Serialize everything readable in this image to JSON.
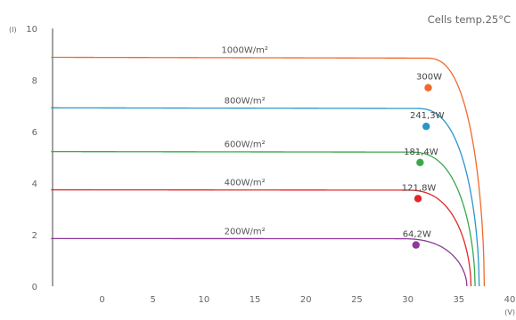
{
  "chart_data": {
    "type": "line",
    "title": "Cells temp.25°C",
    "xlabel": "(V)",
    "ylabel": "(I)",
    "xlim": [
      -5,
      40
    ],
    "ylim": [
      0,
      10
    ],
    "x_ticks": [
      "0",
      "5",
      "10",
      "15",
      "20",
      "25",
      "30",
      "35",
      "40"
    ],
    "y_ticks": [
      "0",
      "2",
      "4",
      "6",
      "8",
      "10"
    ],
    "grid": false,
    "series": [
      {
        "name": "1000W/m²",
        "color": "#f06a2e",
        "isc": 8.88,
        "voc": 37.5,
        "knee": 31.8,
        "mpp": {
          "v": 32.0,
          "i": 7.7,
          "label": "300W"
        }
      },
      {
        "name": "800W/m²",
        "color": "#2a96c8",
        "isc": 6.92,
        "voc": 37.0,
        "knee": 30.8,
        "mpp": {
          "v": 31.8,
          "i": 6.2,
          "label": "241,3W"
        }
      },
      {
        "name": "600W/m²",
        "color": "#3aa84a",
        "isc": 5.22,
        "voc": 36.6,
        "knee": 30.2,
        "mpp": {
          "v": 31.2,
          "i": 4.8,
          "label": "181,4W"
        }
      },
      {
        "name": "400W/m²",
        "color": "#e0282a",
        "isc": 3.74,
        "voc": 36.2,
        "knee": 29.8,
        "mpp": {
          "v": 31.0,
          "i": 3.4,
          "label": "121,8W"
        }
      },
      {
        "name": "200W/m²",
        "color": "#8e3a9a",
        "isc": 1.85,
        "voc": 35.8,
        "knee": 29.2,
        "mpp": {
          "v": 30.8,
          "i": 1.6,
          "label": "64,2W"
        }
      }
    ]
  }
}
